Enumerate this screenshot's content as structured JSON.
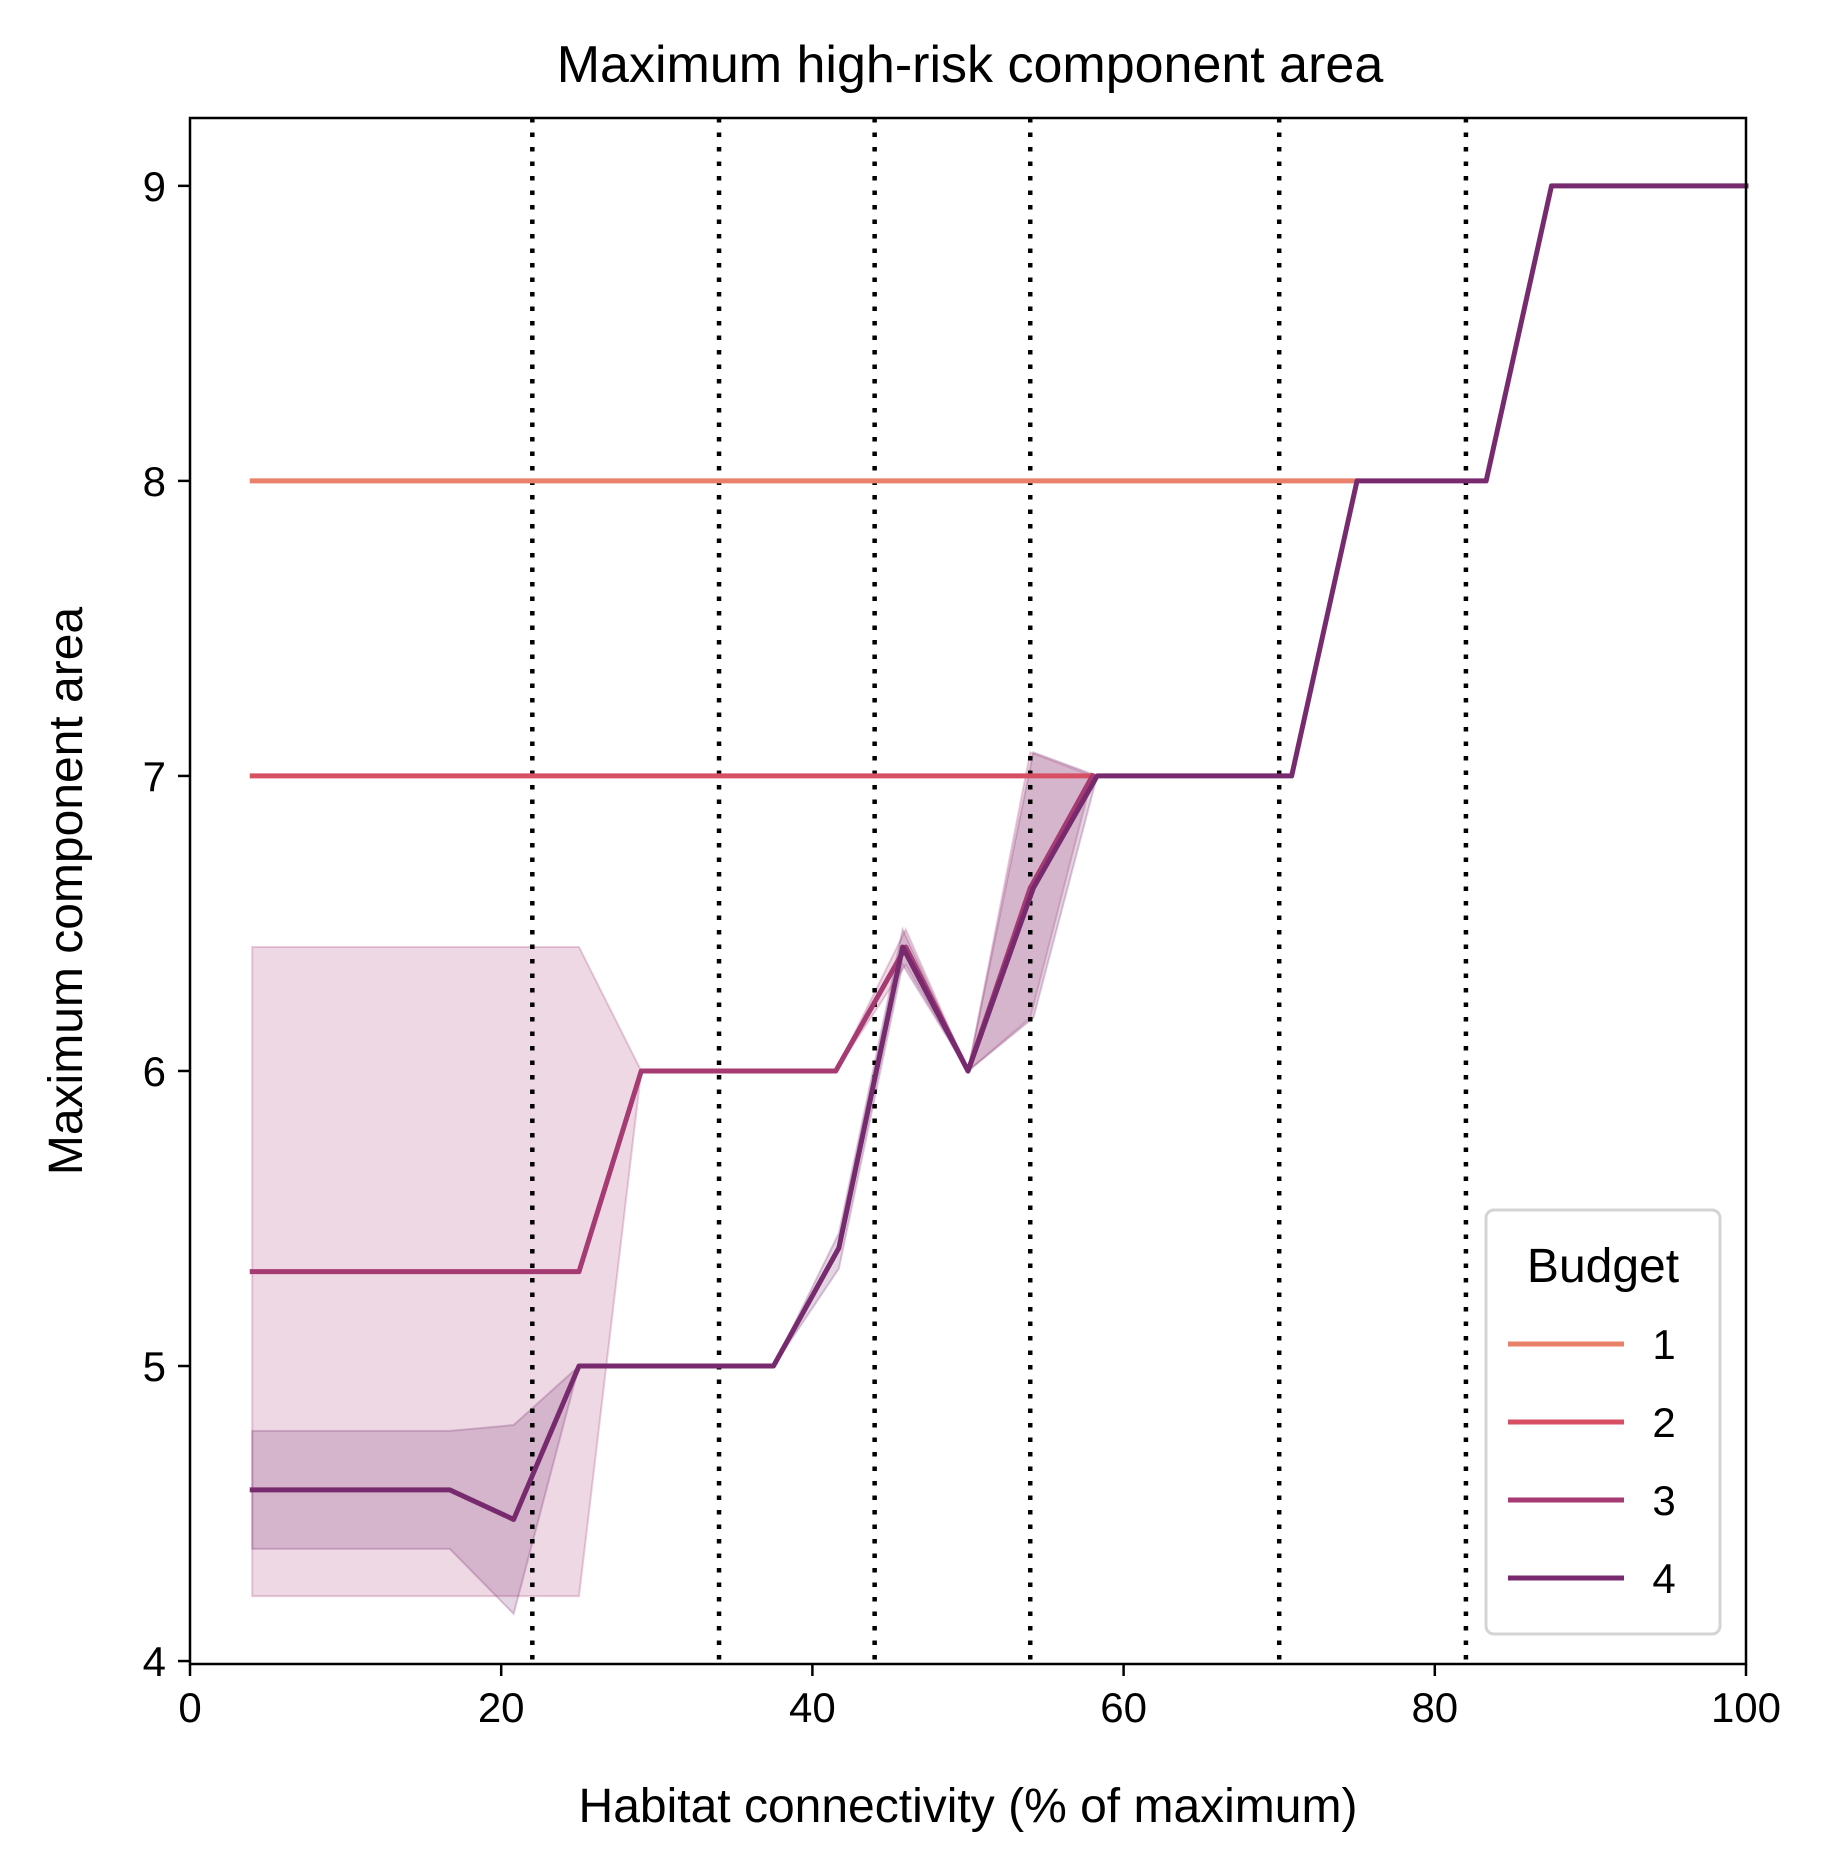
{
  "chart_data": {
    "type": "line",
    "title": "Maximum high-risk component area",
    "xlabel": "Habitat connectivity (% of maximum)",
    "ylabel": "Maximum component area",
    "xlim": [
      0,
      100
    ],
    "ylim": [
      3.99,
      9.23
    ],
    "xticks": [
      0,
      20,
      40,
      60,
      80,
      100
    ],
    "yticks": [
      4,
      5,
      6,
      7,
      8,
      9
    ],
    "xtick_labels": [
      "0",
      "20",
      "40",
      "60",
      "80",
      "100"
    ],
    "ytick_labels": [
      "4",
      "5",
      "6",
      "7",
      "8",
      "9"
    ],
    "grid": false,
    "vlines": [
      22,
      34,
      44,
      54,
      70,
      82
    ],
    "legend": {
      "title": "Budget",
      "placement": "lower-right"
    },
    "series": [
      {
        "name": "1",
        "color": "#e8806a",
        "x": [
          4,
          75
        ],
        "y": [
          8,
          8
        ]
      },
      {
        "name": "2",
        "color": "#d64f63",
        "x": [
          4,
          58
        ],
        "y": [
          7,
          7
        ]
      },
      {
        "name": "3",
        "color": "#a63a72",
        "x": [
          4,
          25,
          29,
          41.5,
          46,
          50,
          54,
          58
        ],
        "y": [
          5.32,
          5.32,
          6,
          6,
          6.42,
          6,
          6.62,
          7
        ],
        "band_upper": [
          6.42,
          6.42,
          6,
          6,
          6.48,
          6,
          7.08,
          7
        ],
        "band_lower": [
          4.22,
          4.22,
          6,
          6,
          6.36,
          6,
          6.18,
          7
        ]
      },
      {
        "name": "4",
        "color": "#772b6e",
        "x": [
          4,
          16.7,
          20.8,
          25,
          37.5,
          41.7,
          45.8,
          50,
          54.2,
          58.3,
          70.8,
          75,
          83.3,
          87.5,
          100
        ],
        "y": [
          4.58,
          4.58,
          4.48,
          5,
          5,
          5.4,
          6.42,
          6,
          6.62,
          7,
          7,
          8,
          8,
          9,
          9
        ],
        "band_upper": [
          4.78,
          4.78,
          4.8,
          5,
          5,
          5.45,
          6.48,
          6,
          7.08,
          7,
          7,
          8,
          8,
          9,
          9
        ],
        "band_lower": [
          4.38,
          4.38,
          4.16,
          5,
          5,
          5.33,
          6.36,
          6,
          6.18,
          7,
          7,
          8,
          8,
          9,
          9
        ]
      }
    ]
  }
}
